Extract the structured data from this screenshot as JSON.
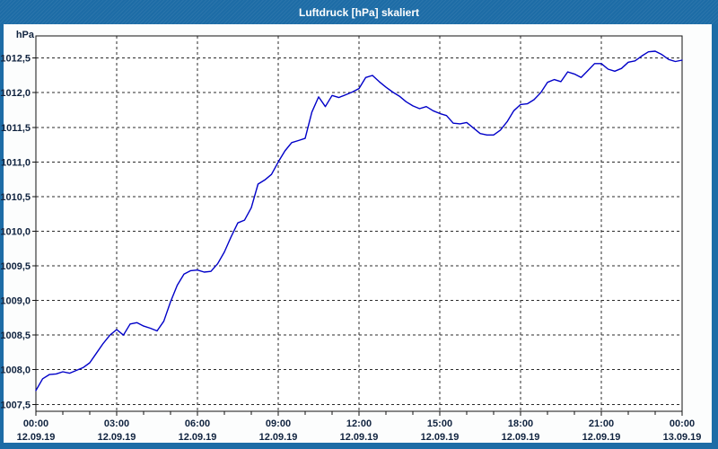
{
  "window": {
    "title": "Luftdruck [hPa] skaliert",
    "colors": {
      "titlebar": "#1d6ca6",
      "border": "#1d6ca6",
      "content_bg": "#fcfdfd",
      "plot_bg": "#ffffff",
      "grid": "#2b2b2b",
      "line": "#0000c8",
      "label_text": "#10233f",
      "title_text": "#ffffff"
    }
  },
  "chart_data": {
    "type": "line",
    "title": "Luftdruck [hPa] skaliert",
    "ylabel": "hPa",
    "series_name": "Luftdruck",
    "grid": "dashed",
    "legend": "none",
    "ylim": [
      1007.4,
      1012.82
    ],
    "yticks": [
      {
        "value": 1012.5,
        "label": "1012,5"
      },
      {
        "value": 1012.0,
        "label": "1012,0"
      },
      {
        "value": 1011.5,
        "label": "1011,5"
      },
      {
        "value": 1011.0,
        "label": "1011,0"
      },
      {
        "value": 1010.5,
        "label": "1010,5"
      },
      {
        "value": 1010.0,
        "label": "1010,0"
      },
      {
        "value": 1009.5,
        "label": "1009,5"
      },
      {
        "value": 1009.0,
        "label": "1009,0"
      },
      {
        "value": 1008.5,
        "label": "1008,5"
      },
      {
        "value": 1008.0,
        "label": "1008,0"
      },
      {
        "value": 1007.5,
        "label": "1007,5"
      }
    ],
    "xticks": [
      {
        "hour": 0,
        "time": "00:00",
        "date": "12.09.19"
      },
      {
        "hour": 3,
        "time": "03:00",
        "date": "12.09.19"
      },
      {
        "hour": 6,
        "time": "06:00",
        "date": "12.09.19"
      },
      {
        "hour": 9,
        "time": "09:00",
        "date": "12.09.19"
      },
      {
        "hour": 12,
        "time": "12:00",
        "date": "12.09.19"
      },
      {
        "hour": 15,
        "time": "15:00",
        "date": "12.09.19"
      },
      {
        "hour": 18,
        "time": "18:00",
        "date": "12.09.19"
      },
      {
        "hour": 21,
        "time": "21:00",
        "date": "12.09.19"
      },
      {
        "hour": 24,
        "time": "00:00",
        "date": "13.09.19"
      }
    ],
    "minor_xtick_every_hours": 1,
    "xlim_hours": [
      0,
      24
    ],
    "x_hours": [
      0,
      0.25,
      0.5,
      0.75,
      1,
      1.25,
      1.5,
      1.75,
      2,
      2.25,
      2.5,
      2.75,
      3,
      3.25,
      3.5,
      3.75,
      4,
      4.25,
      4.5,
      4.75,
      5,
      5.25,
      5.5,
      5.75,
      6,
      6.25,
      6.5,
      6.75,
      7,
      7.25,
      7.5,
      7.75,
      8,
      8.25,
      8.5,
      8.75,
      9,
      9.25,
      9.5,
      9.75,
      10,
      10.25,
      10.5,
      10.75,
      11,
      11.25,
      11.5,
      11.75,
      12,
      12.25,
      12.5,
      12.75,
      13,
      13.25,
      13.5,
      13.75,
      14,
      14.25,
      14.5,
      14.75,
      15,
      15.25,
      15.5,
      15.75,
      16,
      16.25,
      16.5,
      16.75,
      17,
      17.25,
      17.5,
      17.75,
      18,
      18.25,
      18.5,
      18.75,
      19,
      19.25,
      19.5,
      19.75,
      20,
      20.25,
      20.5,
      20.75,
      21,
      21.25,
      21.5,
      21.75,
      22,
      22.25,
      22.5,
      22.75,
      23,
      23.25,
      23.5,
      23.75,
      24
    ],
    "values": [
      1007.7,
      1007.87,
      1007.93,
      1007.94,
      1007.97,
      1007.95,
      1007.99,
      1008.03,
      1008.1,
      1008.24,
      1008.38,
      1008.5,
      1008.58,
      1008.5,
      1008.66,
      1008.68,
      1008.63,
      1008.6,
      1008.56,
      1008.7,
      1008.98,
      1009.22,
      1009.38,
      1009.43,
      1009.44,
      1009.41,
      1009.42,
      1009.53,
      1009.7,
      1009.92,
      1010.12,
      1010.16,
      1010.34,
      1010.68,
      1010.74,
      1010.82,
      1011.0,
      1011.16,
      1011.28,
      1011.31,
      1011.34,
      1011.72,
      1011.94,
      1011.8,
      1011.96,
      1011.93,
      1011.97,
      1012.01,
      1012.06,
      1012.22,
      1012.25,
      1012.16,
      1012.08,
      1012.01,
      1011.95,
      1011.87,
      1011.81,
      1011.77,
      1011.8,
      1011.74,
      1011.7,
      1011.67,
      1011.56,
      1011.55,
      1011.57,
      1011.49,
      1011.41,
      1011.39,
      1011.39,
      1011.46,
      1011.58,
      1011.74,
      1011.83,
      1011.84,
      1011.9,
      1012.0,
      1012.15,
      1012.19,
      1012.16,
      1012.3,
      1012.27,
      1012.22,
      1012.32,
      1012.42,
      1012.42,
      1012.34,
      1012.31,
      1012.35,
      1012.44,
      1012.46,
      1012.53,
      1012.59,
      1012.6,
      1012.55,
      1012.48,
      1012.45,
      1012.47
    ]
  }
}
